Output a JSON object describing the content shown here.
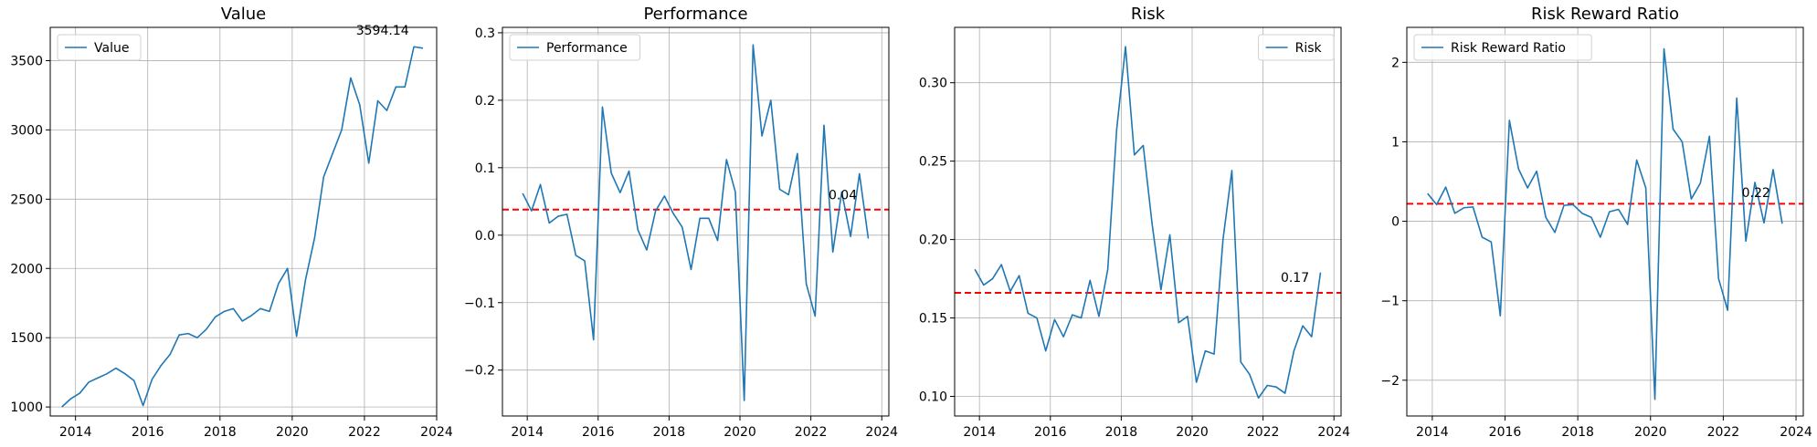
{
  "chart_data": [
    {
      "type": "line",
      "title": "Value",
      "xlabel": "",
      "ylabel": "",
      "xlim": [
        2013.3,
        2024.0
      ],
      "ylim": [
        935,
        3740
      ],
      "x_ticks": [
        2014,
        2016,
        2018,
        2020,
        2022,
        2024
      ],
      "x_tick_labels": [
        "2014",
        "2016",
        "2018",
        "2020",
        "2022",
        "2024"
      ],
      "y_ticks": [
        1000,
        1500,
        2000,
        2500,
        3000,
        3500
      ],
      "y_tick_labels": [
        "1000",
        "1500",
        "2000",
        "2500",
        "3000",
        "3500"
      ],
      "grid": true,
      "legend": "upper left",
      "series": [
        {
          "name": "Value",
          "color": "#1f77b4",
          "x": [
            2013.62,
            2013.87,
            2014.12,
            2014.37,
            2014.62,
            2014.87,
            2015.12,
            2015.37,
            2015.62,
            2015.87,
            2016.12,
            2016.37,
            2016.62,
            2016.87,
            2017.12,
            2017.37,
            2017.62,
            2017.87,
            2018.12,
            2018.37,
            2018.62,
            2018.87,
            2019.12,
            2019.37,
            2019.62,
            2019.87,
            2020.12,
            2020.37,
            2020.62,
            2020.87,
            2021.12,
            2021.37,
            2021.62,
            2021.87,
            2022.12,
            2022.37,
            2022.62,
            2022.87,
            2023.12,
            2023.37,
            2023.62
          ],
          "values": [
            1000,
            1060,
            1100,
            1180,
            1210,
            1240,
            1280,
            1240,
            1190,
            1010,
            1200,
            1300,
            1380,
            1520,
            1530,
            1500,
            1560,
            1650,
            1690,
            1710,
            1620,
            1660,
            1710,
            1690,
            1890,
            2000,
            1510,
            1920,
            2220,
            2660,
            2830,
            3000,
            3375,
            3180,
            2760,
            3210,
            3140,
            3310,
            3310,
            3600,
            3590
          ]
        }
      ],
      "annotations": [
        {
          "text": "3594.14",
          "x": 2022.5,
          "y": 3720
        }
      ]
    },
    {
      "type": "line",
      "title": "Performance",
      "xlabel": "",
      "ylabel": "",
      "xlim": [
        2013.3,
        2024.2
      ],
      "ylim": [
        -0.268,
        0.308
      ],
      "x_ticks": [
        2014,
        2016,
        2018,
        2020,
        2022,
        2024
      ],
      "x_tick_labels": [
        "2014",
        "2016",
        "2018",
        "2020",
        "2022",
        "2024"
      ],
      "y_ticks": [
        -0.2,
        -0.1,
        0.0,
        0.1,
        0.2,
        0.3
      ],
      "y_tick_labels": [
        "−0.2",
        "−0.1",
        "0.0",
        "0.1",
        "0.2",
        "0.3"
      ],
      "grid": true,
      "legend": "upper left",
      "series": [
        {
          "name": "Performance",
          "color": "#1f77b4",
          "x": [
            2013.87,
            2014.12,
            2014.37,
            2014.62,
            2014.87,
            2015.12,
            2015.37,
            2015.62,
            2015.87,
            2016.12,
            2016.37,
            2016.62,
            2016.87,
            2017.12,
            2017.37,
            2017.62,
            2017.87,
            2018.12,
            2018.37,
            2018.62,
            2018.87,
            2019.12,
            2019.37,
            2019.62,
            2019.87,
            2020.12,
            2020.37,
            2020.62,
            2020.87,
            2021.12,
            2021.37,
            2021.62,
            2021.87,
            2022.12,
            2022.37,
            2022.62,
            2022.87,
            2023.12,
            2023.37,
            2023.62
          ],
          "values": [
            0.062,
            0.036,
            0.075,
            0.018,
            0.028,
            0.031,
            -0.03,
            -0.038,
            -0.155,
            0.19,
            0.092,
            0.063,
            0.095,
            0.008,
            -0.022,
            0.036,
            0.058,
            0.032,
            0.012,
            -0.051,
            0.025,
            0.025,
            -0.008,
            0.112,
            0.064,
            -0.245,
            0.282,
            0.147,
            0.2,
            0.068,
            0.06,
            0.121,
            -0.072,
            -0.12,
            0.163,
            -0.025,
            0.064,
            -0.002,
            0.091,
            -0.005
          ]
        }
      ],
      "reference_lines": [
        {
          "y": 0.038,
          "color": "#ff0000",
          "style": "dashed"
        }
      ],
      "annotations": [
        {
          "text": "0.04",
          "x": 2022.9,
          "y": 0.06
        }
      ]
    },
    {
      "type": "line",
      "title": "Risk",
      "xlabel": "",
      "ylabel": "",
      "xlim": [
        2013.3,
        2024.2
      ],
      "ylim": [
        0.0875,
        0.3353
      ],
      "x_ticks": [
        2014,
        2016,
        2018,
        2020,
        2022,
        2024
      ],
      "x_tick_labels": [
        "2014",
        "2016",
        "2018",
        "2020",
        "2022",
        "2024"
      ],
      "y_ticks": [
        0.1,
        0.15,
        0.2,
        0.25,
        0.3
      ],
      "y_tick_labels": [
        "0.10",
        "0.15",
        "0.20",
        "0.25",
        "0.30"
      ],
      "grid": true,
      "legend": "upper right",
      "series": [
        {
          "name": "Risk",
          "color": "#1f77b4",
          "x": [
            2013.87,
            2014.12,
            2014.37,
            2014.62,
            2014.87,
            2015.12,
            2015.37,
            2015.62,
            2015.87,
            2016.12,
            2016.37,
            2016.62,
            2016.87,
            2017.12,
            2017.37,
            2017.62,
            2017.87,
            2018.12,
            2018.37,
            2018.62,
            2018.87,
            2019.12,
            2019.37,
            2019.62,
            2019.87,
            2020.12,
            2020.37,
            2020.62,
            2020.87,
            2021.12,
            2021.37,
            2021.62,
            2021.87,
            2022.12,
            2022.37,
            2022.62,
            2022.87,
            2023.12,
            2023.37,
            2023.62
          ],
          "values": [
            0.181,
            0.171,
            0.175,
            0.184,
            0.167,
            0.177,
            0.153,
            0.15,
            0.129,
            0.149,
            0.138,
            0.152,
            0.15,
            0.174,
            0.151,
            0.181,
            0.27,
            0.323,
            0.254,
            0.26,
            0.21,
            0.168,
            0.203,
            0.147,
            0.151,
            0.109,
            0.129,
            0.127,
            0.2,
            0.244,
            0.122,
            0.114,
            0.099,
            0.107,
            0.106,
            0.102,
            0.129,
            0.145,
            0.138,
            0.179
          ]
        }
      ],
      "reference_lines": [
        {
          "y": 0.166,
          "color": "#ff0000",
          "style": "dashed"
        }
      ],
      "annotations": [
        {
          "text": "0.17",
          "x": 2022.9,
          "y": 0.176
        }
      ]
    },
    {
      "type": "line",
      "title": "Risk Reward Ratio",
      "xlabel": "",
      "ylabel": "",
      "xlim": [
        2013.3,
        2024.2
      ],
      "ylim": [
        -2.45,
        2.44
      ],
      "x_ticks": [
        2014,
        2016,
        2018,
        2020,
        2022,
        2024
      ],
      "x_tick_labels": [
        "2014",
        "2016",
        "2018",
        "2020",
        "2022",
        "2024"
      ],
      "y_ticks": [
        -2,
        -1,
        0,
        1,
        2
      ],
      "y_tick_labels": [
        "−2",
        "−1",
        "0",
        "1",
        "2"
      ],
      "grid": true,
      "legend": "upper left",
      "series": [
        {
          "name": "Risk Reward Ratio",
          "color": "#1f77b4",
          "x": [
            2013.87,
            2014.12,
            2014.37,
            2014.62,
            2014.87,
            2015.12,
            2015.37,
            2015.62,
            2015.87,
            2016.12,
            2016.37,
            2016.62,
            2016.87,
            2017.12,
            2017.37,
            2017.62,
            2017.87,
            2018.12,
            2018.37,
            2018.62,
            2018.87,
            2019.12,
            2019.37,
            2019.62,
            2019.87,
            2020.12,
            2020.37,
            2020.62,
            2020.87,
            2021.12,
            2021.37,
            2021.62,
            2021.87,
            2022.12,
            2022.37,
            2022.62,
            2022.87,
            2023.12,
            2023.37,
            2023.62
          ],
          "values": [
            0.35,
            0.21,
            0.43,
            0.1,
            0.17,
            0.18,
            -0.2,
            -0.26,
            -1.19,
            1.27,
            0.66,
            0.42,
            0.63,
            0.05,
            -0.14,
            0.2,
            0.21,
            0.1,
            0.05,
            -0.2,
            0.12,
            0.15,
            -0.04,
            0.77,
            0.42,
            -2.24,
            2.17,
            1.16,
            1.0,
            0.28,
            0.48,
            1.07,
            -0.72,
            -1.12,
            1.55,
            -0.25,
            0.49,
            -0.02,
            0.65,
            -0.03
          ]
        }
      ],
      "reference_lines": [
        {
          "y": 0.22,
          "color": "#ff0000",
          "style": "dashed"
        }
      ],
      "annotations": [
        {
          "text": "0.22",
          "x": 2022.9,
          "y": 0.36
        }
      ]
    }
  ]
}
